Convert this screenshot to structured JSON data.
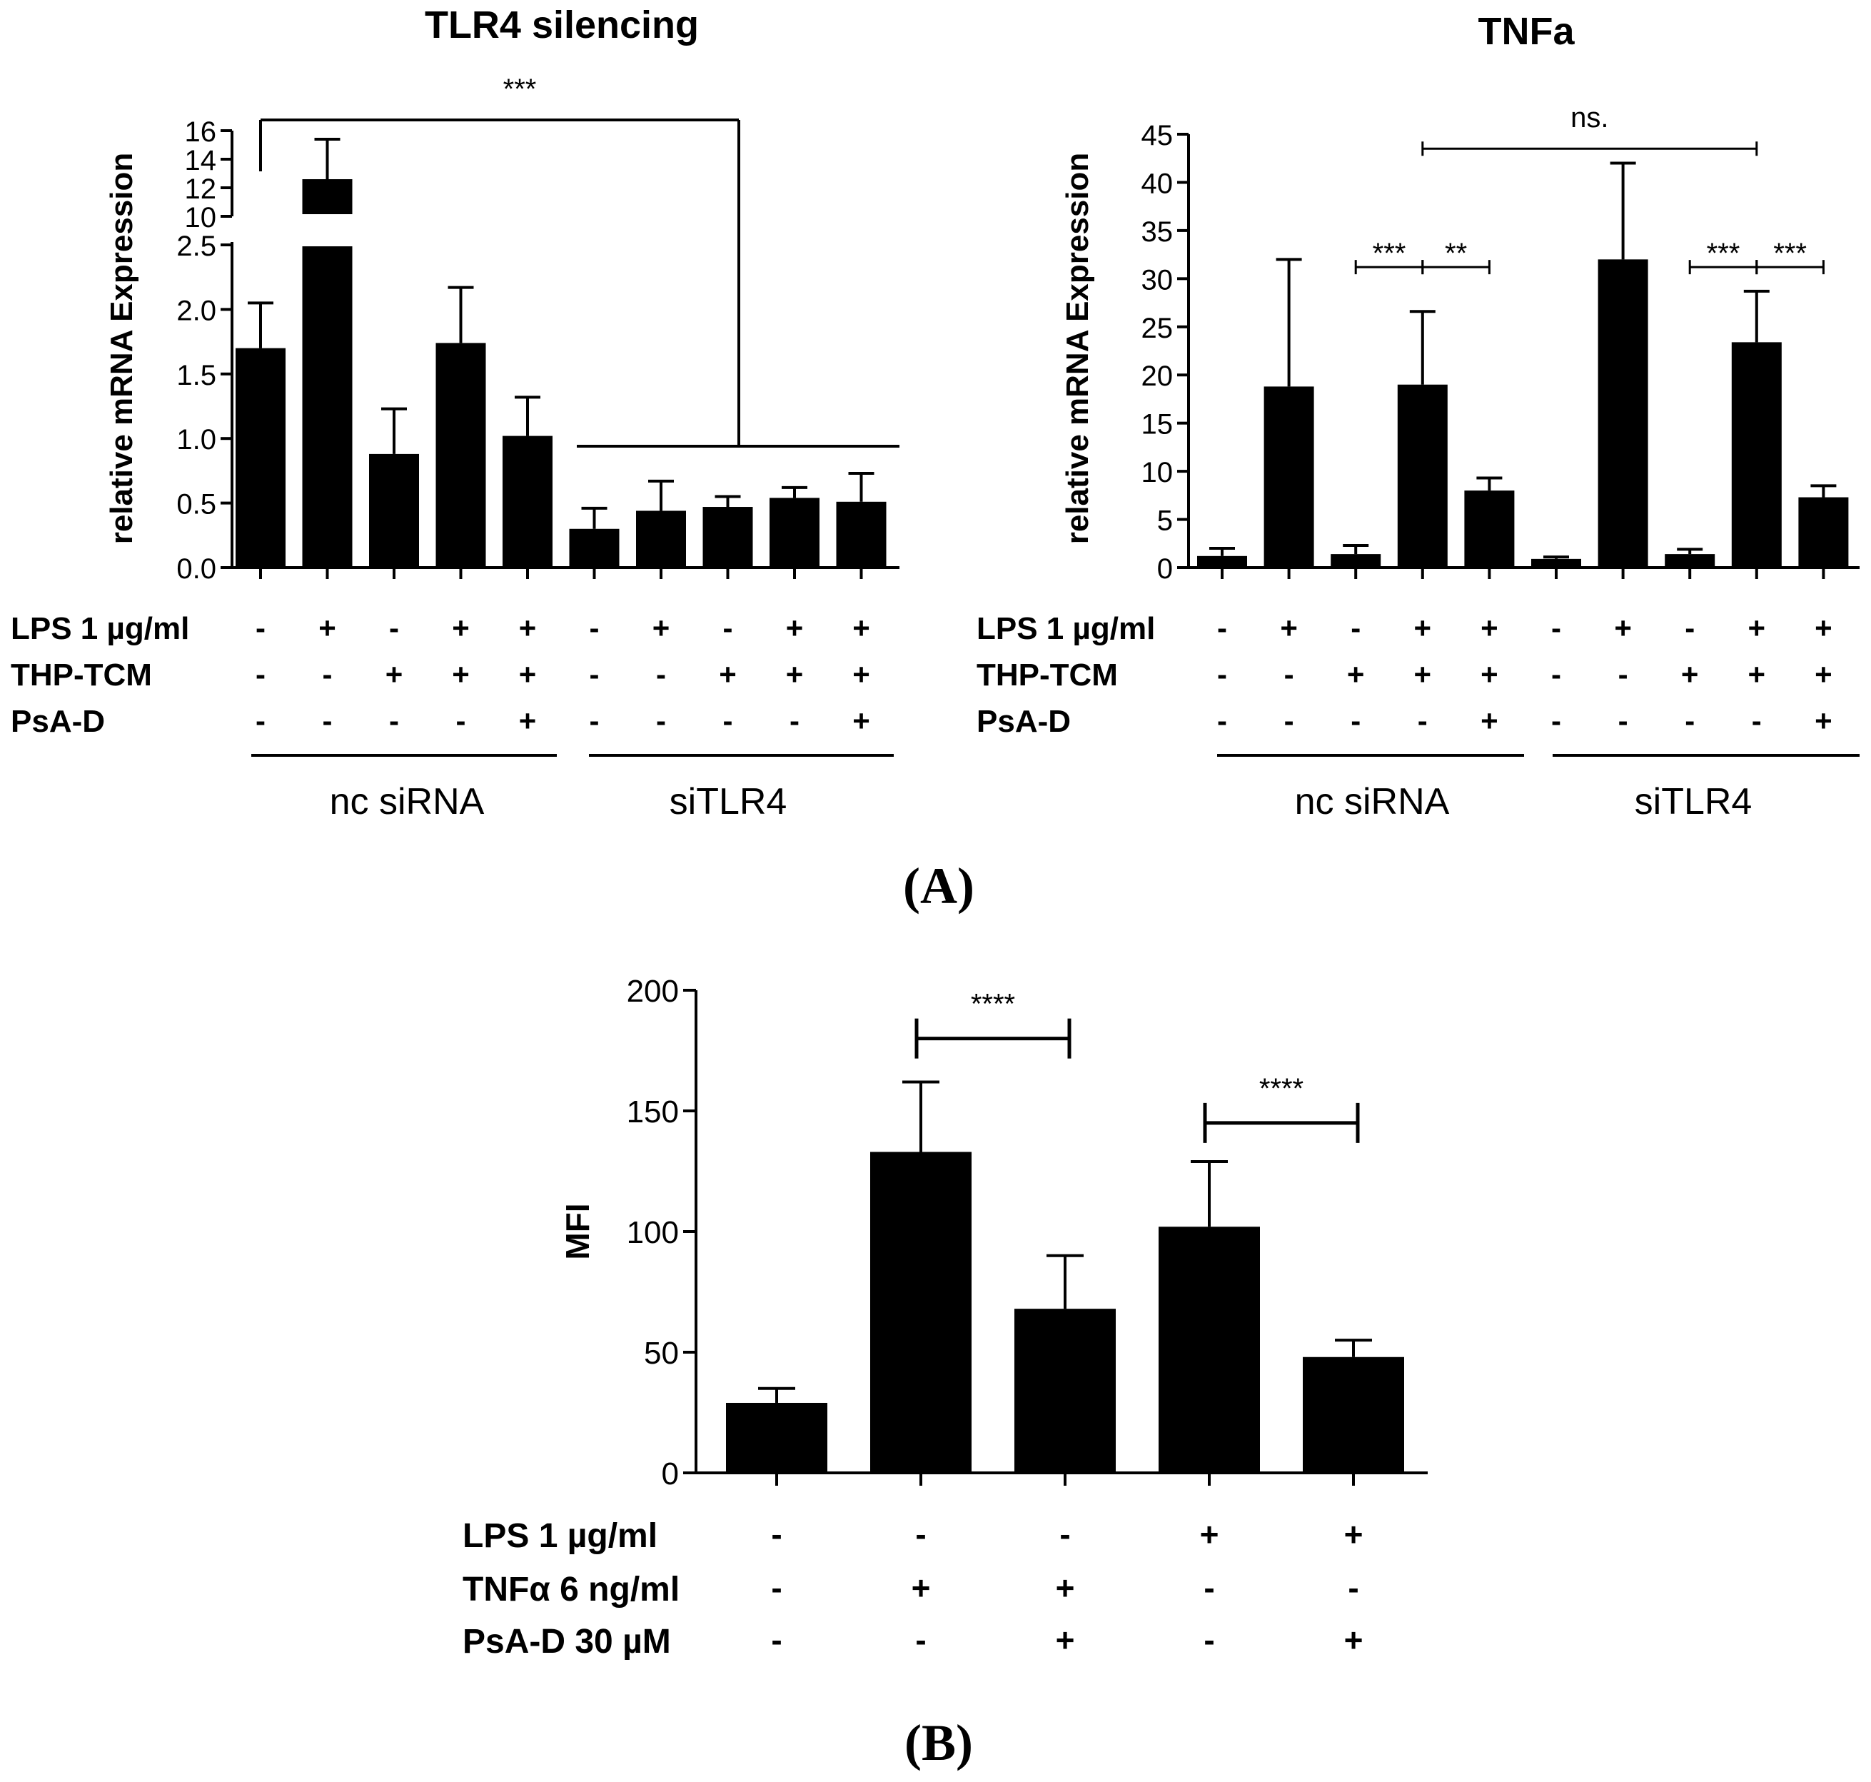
{
  "panel_labels": {
    "a": "(A)",
    "b": "(B)"
  },
  "chart_data": [
    {
      "type": "bar",
      "title": "TLR4 silencing",
      "ylabel": "relative mRNA Expression",
      "ylim": [
        0,
        16
      ],
      "axis_break": {
        "lower_range": [
          0,
          2.5
        ],
        "upper_range": [
          10,
          16
        ]
      },
      "yticks_lower": [
        "0.0",
        "0.5",
        "1.0",
        "1.5",
        "2.0",
        "2.5"
      ],
      "yticks_upper": [
        "10",
        "12",
        "14",
        "16"
      ],
      "values": [
        1.7,
        12.6,
        0.88,
        1.74,
        1.02,
        0.3,
        0.44,
        0.47,
        0.54,
        0.51
      ],
      "errors": [
        0.35,
        2.8,
        0.35,
        0.43,
        0.3,
        0.16,
        0.23,
        0.08,
        0.08,
        0.22
      ],
      "conditions": [
        {
          "label": "LPS 1 µg/ml",
          "signs": [
            "-",
            "+",
            "-",
            "+",
            "+",
            "-",
            "+",
            "-",
            "+",
            "+"
          ]
        },
        {
          "label": "THP-TCM",
          "signs": [
            "-",
            "-",
            "+",
            "+",
            "+",
            "-",
            "-",
            "+",
            "+",
            "+"
          ]
        },
        {
          "label": "PsA-D",
          "signs": [
            "-",
            "-",
            "-",
            "-",
            "+",
            "-",
            "-",
            "-",
            "-",
            "+"
          ]
        }
      ],
      "groups": [
        "nc siRNA",
        "siTLR4"
      ],
      "significance": [
        {
          "label": "***",
          "between": "nc siRNA vs siTLR4"
        }
      ]
    },
    {
      "type": "bar",
      "title": "TNFa",
      "ylabel": "relative mRNA Expression",
      "ylim": [
        0,
        45
      ],
      "yticks": [
        "0",
        "5",
        "10",
        "15",
        "20",
        "25",
        "30",
        "35",
        "40",
        "45"
      ],
      "values": [
        1.2,
        18.8,
        1.4,
        19.0,
        8.0,
        0.9,
        32.0,
        1.4,
        23.4,
        7.3
      ],
      "errors": [
        0.8,
        13.2,
        0.9,
        7.6,
        1.3,
        0.2,
        10.0,
        0.5,
        5.3,
        1.2
      ],
      "conditions": [
        {
          "label": "LPS 1 µg/ml",
          "signs": [
            "-",
            "+",
            "-",
            "+",
            "+",
            "-",
            "+",
            "-",
            "+",
            "+"
          ]
        },
        {
          "label": "THP-TCM",
          "signs": [
            "-",
            "-",
            "+",
            "+",
            "+",
            "-",
            "-",
            "+",
            "+",
            "+"
          ]
        },
        {
          "label": "PsA-D",
          "signs": [
            "-",
            "-",
            "-",
            "-",
            "+",
            "-",
            "-",
            "-",
            "-",
            "+"
          ]
        }
      ],
      "groups": [
        "nc siRNA",
        "siTLR4"
      ],
      "significance": [
        {
          "from": 3,
          "to": 8,
          "label": "ns.",
          "y": 43.5
        },
        {
          "from": 2,
          "to": 3,
          "label": "***",
          "y": 31.2
        },
        {
          "from": 3,
          "to": 4,
          "label": "**",
          "y": 31.2
        },
        {
          "from": 7,
          "to": 8,
          "label": "***",
          "y": 31.2
        },
        {
          "from": 8,
          "to": 9,
          "label": "***",
          "y": 31.2
        }
      ]
    },
    {
      "type": "bar",
      "title": "",
      "ylabel": "MFI",
      "ylim": [
        0,
        200
      ],
      "yticks": [
        "0",
        "50",
        "100",
        "150",
        "200"
      ],
      "values": [
        29,
        133,
        68,
        102,
        48
      ],
      "errors": [
        6,
        29,
        22,
        27,
        7
      ],
      "conditions": [
        {
          "label": "LPS 1 µg/ml",
          "signs": [
            "-",
            "-",
            "-",
            "+",
            "+"
          ]
        },
        {
          "label": "TNFα 6 ng/ml",
          "signs": [
            "-",
            "+",
            "+",
            "-",
            "-"
          ]
        },
        {
          "label": "PsA-D 30 µM",
          "signs": [
            "-",
            "-",
            "+",
            "-",
            "+"
          ]
        }
      ],
      "significance": [
        {
          "from": 1,
          "to": 2,
          "label": "****",
          "y": 180
        },
        {
          "from": 3,
          "to": 4,
          "label": "****",
          "y": 145
        }
      ]
    }
  ]
}
